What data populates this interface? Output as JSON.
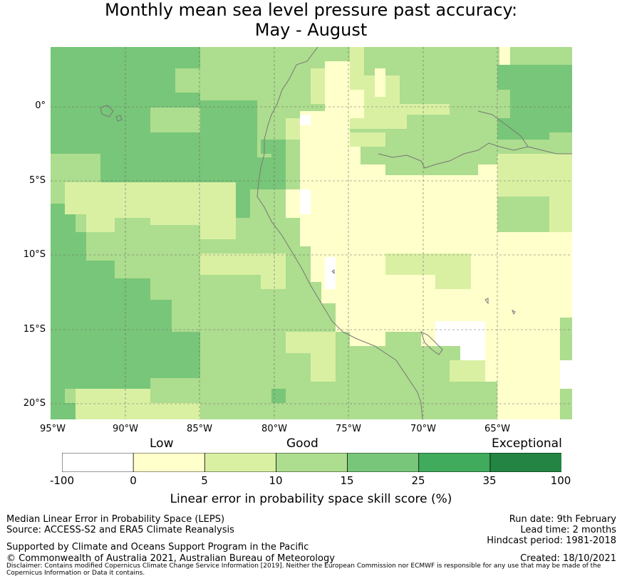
{
  "title": {
    "line1": "Monthly mean sea level pressure past accuracy:",
    "line2": "May - August"
  },
  "map": {
    "lat_labels": [
      "0°",
      "5°S",
      "10°S",
      "15°S",
      "20°S"
    ],
    "lon_labels": [
      "95°W",
      "90°W",
      "85°W",
      "80°W",
      "75°W",
      "70°W",
      "65°W"
    ],
    "region": "Western South America / Eastern Pacific"
  },
  "legend": {
    "categories": [
      "Low",
      "Good",
      "Exceptional"
    ],
    "ticks": [
      "-100",
      "0",
      "5",
      "10",
      "15",
      "25",
      "35",
      "100"
    ],
    "colors": [
      "#ffffff",
      "#ffffcc",
      "#d9f0a3",
      "#addd8e",
      "#78c679",
      "#41ab5d",
      "#238443"
    ],
    "label": "Linear error in probability space skill score (%)"
  },
  "footer": {
    "left1": "Median Linear Error in Probability Space (LEPS)",
    "left2": "Source: ACCESS-S2 and ERA5 Climate Reanalysis",
    "supported": "Supported by Climate and Oceans Support Program in the Pacific",
    "copyright": "© Commonwealth of Australia 2021, Australian Bureau of Meteorology",
    "run_date": "Run date: 9th February",
    "lead_time": "Lead time: 2 months",
    "hindcast": "Hindcast period: 1981-2018",
    "created": "Created: 18/10/2021",
    "disclaimer": "Disclaimer: Contains modified Copernicus Climate Change Service Information [2019]. Neither the European Commission nor ECMWF is responsible for any use that may be made of the Copernicus Information or Data it contains."
  }
}
